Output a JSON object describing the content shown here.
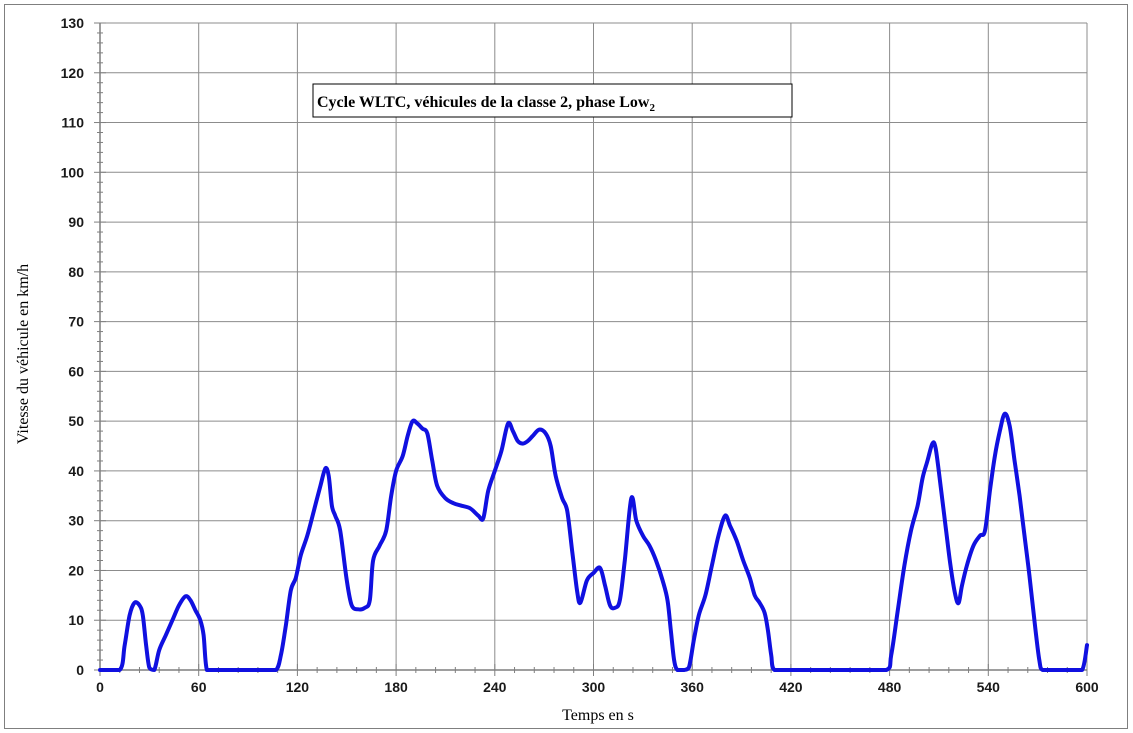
{
  "chart_data": {
    "type": "line",
    "title": "Cycle WLTC, véhicules de la classe 2, phase Low",
    "title_subscript": "2",
    "xlabel": "Temps en s",
    "ylabel": "Vitesse du véhicule en km/h",
    "xlim": [
      0,
      600
    ],
    "ylim": [
      0,
      130
    ],
    "x_ticks": [
      0,
      60,
      120,
      180,
      240,
      300,
      360,
      420,
      480,
      540,
      600
    ],
    "y_ticks": [
      0,
      10,
      20,
      30,
      40,
      50,
      60,
      70,
      80,
      90,
      100,
      110,
      120,
      130
    ],
    "x_minor_step": 12,
    "y_minor_step": 2,
    "grid": true,
    "legend": "none",
    "series": [
      {
        "color": "#1010e0",
        "points": [
          [
            0,
            0
          ],
          [
            12,
            0
          ],
          [
            15,
            5
          ],
          [
            18,
            11
          ],
          [
            21,
            13.5
          ],
          [
            24,
            13
          ],
          [
            26,
            11
          ],
          [
            28,
            5
          ],
          [
            30,
            0.5
          ],
          [
            33,
            0
          ],
          [
            36,
            4
          ],
          [
            40,
            7
          ],
          [
            44,
            10
          ],
          [
            48,
            13
          ],
          [
            52,
            14.8
          ],
          [
            55,
            14
          ],
          [
            58,
            12
          ],
          [
            61,
            10
          ],
          [
            63,
            7
          ],
          [
            65,
            0
          ],
          [
            70,
            0
          ],
          [
            80,
            0
          ],
          [
            90,
            0
          ],
          [
            100,
            0
          ],
          [
            107,
            0
          ],
          [
            110,
            3
          ],
          [
            113,
            9
          ],
          [
            116,
            16
          ],
          [
            119,
            18.5
          ],
          [
            122,
            23
          ],
          [
            126,
            27
          ],
          [
            130,
            32
          ],
          [
            134,
            37
          ],
          [
            137,
            40.5
          ],
          [
            139,
            39
          ],
          [
            141,
            33
          ],
          [
            143,
            31
          ],
          [
            146,
            28
          ],
          [
            150,
            18
          ],
          [
            153,
            13
          ],
          [
            157,
            12.2
          ],
          [
            161,
            12.5
          ],
          [
            164,
            14
          ],
          [
            166,
            22
          ],
          [
            170,
            25
          ],
          [
            174,
            28
          ],
          [
            177,
            35
          ],
          [
            180,
            40
          ],
          [
            184,
            43
          ],
          [
            187,
            47
          ],
          [
            190,
            50
          ],
          [
            193,
            49.5
          ],
          [
            196,
            48.5
          ],
          [
            199,
            47.5
          ],
          [
            202,
            42
          ],
          [
            205,
            37
          ],
          [
            210,
            34.5
          ],
          [
            215,
            33.5
          ],
          [
            220,
            33
          ],
          [
            225,
            32.5
          ],
          [
            230,
            31
          ],
          [
            233,
            30.5
          ],
          [
            236,
            36
          ],
          [
            240,
            40
          ],
          [
            244,
            44
          ],
          [
            248,
            49.5
          ],
          [
            251,
            48
          ],
          [
            254,
            46
          ],
          [
            257,
            45.5
          ],
          [
            260,
            46
          ],
          [
            263,
            47
          ],
          [
            267,
            48.3
          ],
          [
            271,
            47.5
          ],
          [
            274,
            45
          ],
          [
            277,
            39
          ],
          [
            281,
            34.5
          ],
          [
            284,
            32
          ],
          [
            287,
            24
          ],
          [
            290,
            16
          ],
          [
            292,
            13.5
          ],
          [
            296,
            18
          ],
          [
            300,
            19.5
          ],
          [
            304,
            20.5
          ],
          [
            307,
            17
          ],
          [
            310,
            13
          ],
          [
            313,
            12.5
          ],
          [
            316,
            14
          ],
          [
            319,
            22
          ],
          [
            323,
            34.5
          ],
          [
            326,
            30
          ],
          [
            330,
            27
          ],
          [
            334,
            25
          ],
          [
            338,
            22
          ],
          [
            342,
            18
          ],
          [
            345,
            14
          ],
          [
            347,
            8
          ],
          [
            349,
            2
          ],
          [
            351,
            0
          ],
          [
            355,
            0
          ],
          [
            358,
            0.5
          ],
          [
            361,
            6
          ],
          [
            364,
            11
          ],
          [
            368,
            15
          ],
          [
            372,
            21
          ],
          [
            376,
            27
          ],
          [
            380,
            31
          ],
          [
            383,
            29
          ],
          [
            387,
            26
          ],
          [
            391,
            22
          ],
          [
            395,
            18.5
          ],
          [
            398,
            15
          ],
          [
            401,
            13.5
          ],
          [
            404,
            11.5
          ],
          [
            406,
            8
          ],
          [
            408,
            3
          ],
          [
            410,
            0
          ],
          [
            420,
            0
          ],
          [
            440,
            0
          ],
          [
            460,
            0
          ],
          [
            478,
            0
          ],
          [
            481,
            3
          ],
          [
            485,
            12
          ],
          [
            489,
            21
          ],
          [
            493,
            28
          ],
          [
            497,
            33
          ],
          [
            500,
            38.5
          ],
          [
            503,
            42
          ],
          [
            506,
            45.5
          ],
          [
            508,
            44.5
          ],
          [
            511,
            37
          ],
          [
            514,
            29
          ],
          [
            517,
            21
          ],
          [
            520,
            15
          ],
          [
            522,
            13.5
          ],
          [
            524,
            17
          ],
          [
            527,
            21
          ],
          [
            531,
            25
          ],
          [
            535,
            27
          ],
          [
            538,
            28
          ],
          [
            541,
            36
          ],
          [
            544,
            43
          ],
          [
            547,
            48
          ],
          [
            550,
            51.5
          ],
          [
            553,
            49
          ],
          [
            556,
            42
          ],
          [
            559,
            35
          ],
          [
            562,
            27
          ],
          [
            565,
            19
          ],
          [
            568,
            10
          ],
          [
            571,
            2
          ],
          [
            573,
            0
          ],
          [
            580,
            0
          ],
          [
            590,
            0
          ],
          [
            597,
            0
          ],
          [
            600,
            5
          ]
        ]
      }
    ]
  }
}
